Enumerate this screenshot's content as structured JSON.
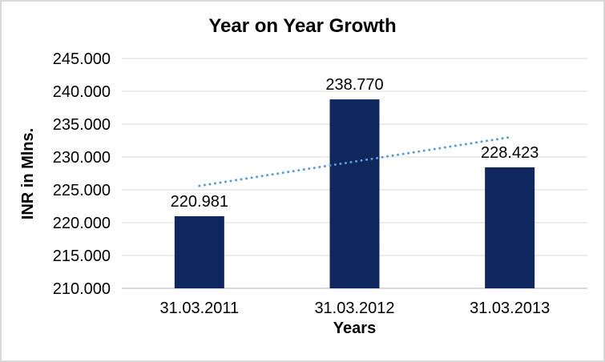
{
  "window": {
    "background_color": "#ffffff",
    "border_color": "#d9d9d9"
  },
  "chart_data": {
    "type": "bar",
    "title": "Year on Year Growth",
    "categories": [
      "31.03.2011",
      "31.03.2012",
      "31.03.2013"
    ],
    "values": [
      220.981,
      238.77,
      228.423
    ],
    "data_labels": [
      "220.981",
      "238.770",
      "228.423"
    ],
    "xlabel": "Years",
    "ylabel": "INR in Mlns.",
    "ylim": [
      210,
      245
    ],
    "ytick_step": 5,
    "yticks": [
      "210.000",
      "215.000",
      "220.000",
      "225.000",
      "230.000",
      "235.000",
      "240.000",
      "245.000"
    ],
    "grid": true,
    "legend": "none",
    "bar_color": "#10275e",
    "gridline_color": "#d9d9d9",
    "axis_line_color": "#d9d9d9",
    "text_color": "#000000",
    "trendline": {
      "type": "linear",
      "style": "dotted",
      "color": "#5b9bd5",
      "start_value": 225.6,
      "end_value": 233.0
    }
  }
}
